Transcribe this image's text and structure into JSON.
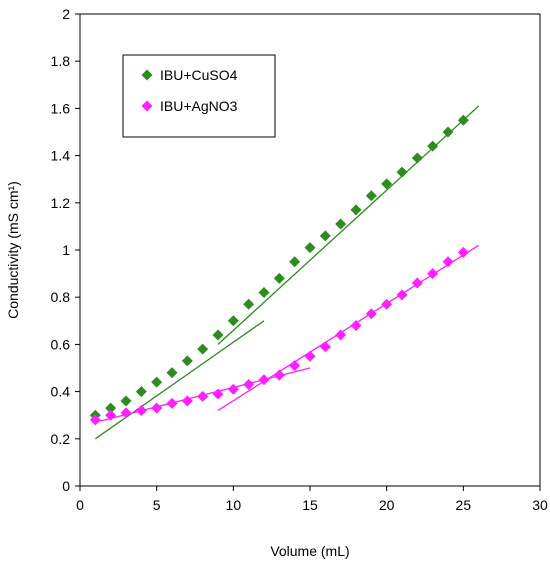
{
  "chart_data": {
    "type": "scatter",
    "xlabel": "Volume (mL)",
    "ylabel": "Conductivity (mS cm¹)",
    "xlim": [
      0,
      30
    ],
    "ylim": [
      0,
      2
    ],
    "xticks": [
      0,
      5,
      10,
      15,
      20,
      25,
      30
    ],
    "yticks": [
      0,
      0.2,
      0.4,
      0.6,
      0.8,
      1,
      1.2,
      1.4,
      1.6,
      1.8,
      2
    ],
    "xtick_labels": [
      "0",
      "5",
      "10",
      "15",
      "20",
      "25",
      "30"
    ],
    "ytick_labels": [
      "0",
      "0.2",
      "0.4",
      "0.6",
      "0.8",
      "1",
      "1.2",
      "1.4",
      "1.6",
      "1.8",
      "2"
    ],
    "grid": false,
    "legend_position": "top-left",
    "series": [
      {
        "name": "IBU+CuSO4",
        "color": "#2e8b1f",
        "marker": "diamond",
        "x": [
          1,
          2,
          3,
          4,
          5,
          6,
          7,
          8,
          9,
          10,
          11,
          12,
          13,
          14,
          15,
          16,
          17,
          18,
          19,
          20,
          21,
          22,
          23,
          24,
          25
        ],
        "y": [
          0.3,
          0.33,
          0.36,
          0.4,
          0.44,
          0.48,
          0.53,
          0.58,
          0.64,
          0.7,
          0.77,
          0.82,
          0.88,
          0.95,
          1.01,
          1.06,
          1.11,
          1.17,
          1.23,
          1.28,
          1.33,
          1.39,
          1.44,
          1.5,
          1.55
        ],
        "fit_lines": [
          {
            "x": [
              1,
              12
            ],
            "y": [
              0.2,
              0.7
            ]
          },
          {
            "x": [
              9,
              26
            ],
            "y": [
              0.6,
              1.61
            ]
          }
        ]
      },
      {
        "name": "IBU+AgNO3",
        "color": "#ff1fff",
        "marker": "diamond",
        "x": [
          1,
          2,
          3,
          4,
          5,
          6,
          7,
          8,
          9,
          10,
          11,
          12,
          13,
          14,
          15,
          16,
          17,
          18,
          19,
          20,
          21,
          22,
          23,
          24,
          25
        ],
        "y": [
          0.28,
          0.3,
          0.31,
          0.32,
          0.33,
          0.35,
          0.36,
          0.38,
          0.39,
          0.41,
          0.43,
          0.45,
          0.47,
          0.51,
          0.55,
          0.59,
          0.64,
          0.68,
          0.73,
          0.77,
          0.81,
          0.86,
          0.9,
          0.95,
          0.99
        ],
        "fit_lines": [
          {
            "x": [
              1,
              15
            ],
            "y": [
              0.27,
              0.5
            ]
          },
          {
            "x": [
              9,
              26
            ],
            "y": [
              0.32,
              1.02
            ]
          }
        ]
      }
    ]
  }
}
